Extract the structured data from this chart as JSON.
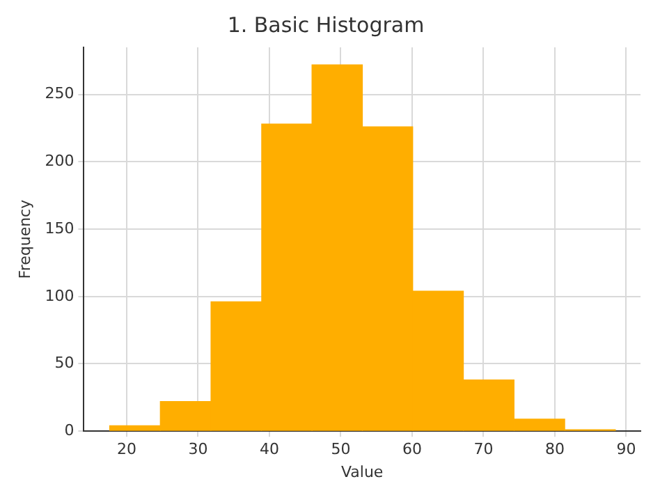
{
  "chart_data": {
    "type": "histogram",
    "title": "1. Basic Histogram",
    "xlabel": "Value",
    "ylabel": "Frequency",
    "bins": [
      17.6,
      24.7,
      31.8,
      38.9,
      46.0,
      53.0,
      60.1,
      67.2,
      74.3,
      81.4,
      88.5
    ],
    "values": [
      4,
      22,
      96,
      228,
      272,
      226,
      104,
      38,
      9,
      1
    ],
    "color": "#ffae00",
    "xlim": [
      14,
      92
    ],
    "xticks": [
      20,
      30,
      40,
      50,
      60,
      70,
      80,
      90
    ],
    "ylim": [
      0,
      285
    ],
    "yticks": [
      0,
      50,
      100,
      150,
      200,
      250
    ],
    "grid": true
  }
}
